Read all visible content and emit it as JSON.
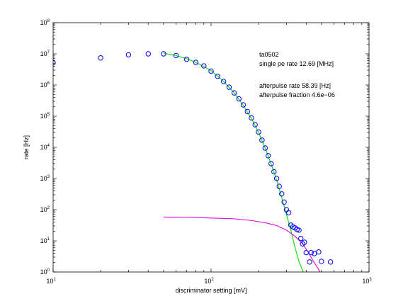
{
  "chart_data": {
    "type": "scatter",
    "xscale": "log",
    "yscale": "log",
    "xlim": [
      10,
      1000
    ],
    "ylim": [
      1,
      100000000
    ],
    "xlabel": "discriminator setting [mV]",
    "ylabel": "rate [Hz]",
    "xticks": [
      {
        "base": "10",
        "exp": "1"
      },
      {
        "base": "10",
        "exp": "2"
      },
      {
        "base": "10",
        "exp": "3"
      }
    ],
    "yticks": [
      {
        "base": "10",
        "exp": "0"
      },
      {
        "base": "10",
        "exp": "1"
      },
      {
        "base": "10",
        "exp": "2"
      },
      {
        "base": "10",
        "exp": "3"
      },
      {
        "base": "10",
        "exp": "4"
      },
      {
        "base": "10",
        "exp": "5"
      },
      {
        "base": "10",
        "exp": "6"
      },
      {
        "base": "10",
        "exp": "7"
      },
      {
        "base": "10",
        "exp": "8"
      }
    ],
    "grid": false,
    "annotations": [
      "ta0502",
      "single pe rate 12.69 [MHz]",
      "afterpulse rate 58.39 [Hz]",
      "afterpulse fraction 4.6e−06"
    ],
    "series": [
      {
        "style": "markers-circle",
        "color": "#0000ff",
        "points": [
          [
            10,
            5200000
          ],
          [
            20,
            7400000
          ],
          [
            30,
            9300000
          ],
          [
            40,
            10000000
          ],
          [
            50,
            10000000
          ],
          [
            60,
            8800000
          ],
          [
            70,
            6700000
          ],
          [
            80,
            5300000
          ],
          [
            90,
            4100000
          ],
          [
            100,
            2800000
          ],
          [
            110,
            1900000
          ],
          [
            120,
            1300000
          ],
          [
            130,
            850000
          ],
          [
            140,
            560000
          ],
          [
            150,
            360000
          ],
          [
            160,
            230000
          ],
          [
            170,
            140000
          ],
          [
            180,
            88000
          ],
          [
            190,
            53000
          ],
          [
            200,
            31000
          ],
          [
            210,
            17000
          ],
          [
            220,
            9500
          ],
          [
            230,
            5400
          ],
          [
            240,
            3000
          ],
          [
            250,
            1650
          ],
          [
            260,
            1000
          ],
          [
            270,
            560
          ],
          [
            280,
            320
          ],
          [
            290,
            175
          ],
          [
            300,
            100
          ],
          [
            310,
            80
          ],
          [
            320,
            32
          ],
          [
            330,
            28
          ],
          [
            340,
            26
          ],
          [
            350,
            23
          ],
          [
            360,
            22
          ],
          [
            370,
            12
          ],
          [
            380,
            8
          ],
          [
            390,
            9
          ],
          [
            400,
            4.2
          ],
          [
            420,
            2.1
          ],
          [
            430,
            4.2
          ],
          [
            450,
            3.9
          ],
          [
            480,
            4.4
          ],
          [
            500,
            2.2
          ],
          [
            570,
            2.1
          ]
        ]
      },
      {
        "style": "line",
        "color": "#00dd00",
        "points": [
          [
            50,
            10500000
          ],
          [
            60,
            8800000
          ],
          [
            70,
            7000000
          ],
          [
            80,
            5300000
          ],
          [
            90,
            3900000
          ],
          [
            100,
            2900000
          ],
          [
            120,
            1300000
          ],
          [
            140,
            560000
          ],
          [
            160,
            220000
          ],
          [
            180,
            85000
          ],
          [
            200,
            30000
          ],
          [
            220,
            9500
          ],
          [
            240,
            2900
          ],
          [
            260,
            900
          ],
          [
            280,
            250
          ],
          [
            300,
            70
          ],
          [
            320,
            22
          ],
          [
            340,
            6
          ],
          [
            360,
            2.2
          ],
          [
            380,
            1.1
          ],
          [
            395,
            0.7
          ]
        ]
      },
      {
        "style": "line",
        "color": "#dd00dd",
        "points": [
          [
            50,
            58
          ],
          [
            70,
            57
          ],
          [
            100,
            54
          ],
          [
            140,
            51
          ],
          [
            180,
            45
          ],
          [
            220,
            38
          ],
          [
            260,
            31
          ],
          [
            300,
            22
          ],
          [
            340,
            14
          ],
          [
            380,
            8
          ],
          [
            410,
            4.5
          ],
          [
            440,
            2.4
          ],
          [
            480,
            1.2
          ],
          [
            500,
            0.8
          ]
        ]
      }
    ]
  }
}
